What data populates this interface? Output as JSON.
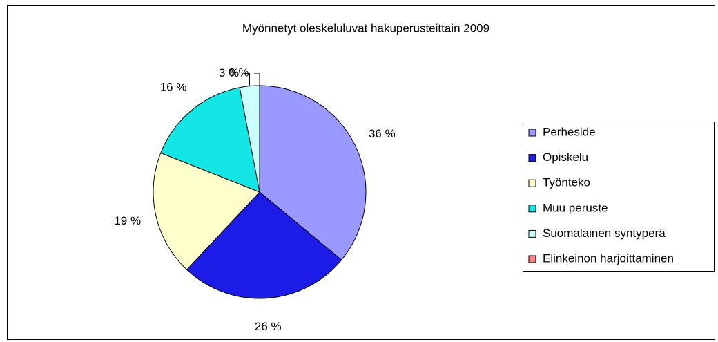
{
  "chart_data": {
    "type": "pie",
    "title": "Myönnetyt oleskeluluvat hakuperusteittain 2009",
    "categories": [
      "Perheside",
      "Opiskelu",
      "Työnteko",
      "Muu peruste",
      "Suomalainen syntyperä",
      "Elinkeinon harjoittaminen"
    ],
    "values": [
      36,
      26,
      19,
      16,
      3,
      0
    ],
    "value_labels": [
      "36 %",
      "26 %",
      "19 %",
      "16 %",
      "3 %",
      "0 %"
    ],
    "colors": [
      "#9999ff",
      "#1c1ce6",
      "#ffffcc",
      "#14e6e6",
      "#ccffff",
      "#ff8080"
    ],
    "legend": "right"
  }
}
